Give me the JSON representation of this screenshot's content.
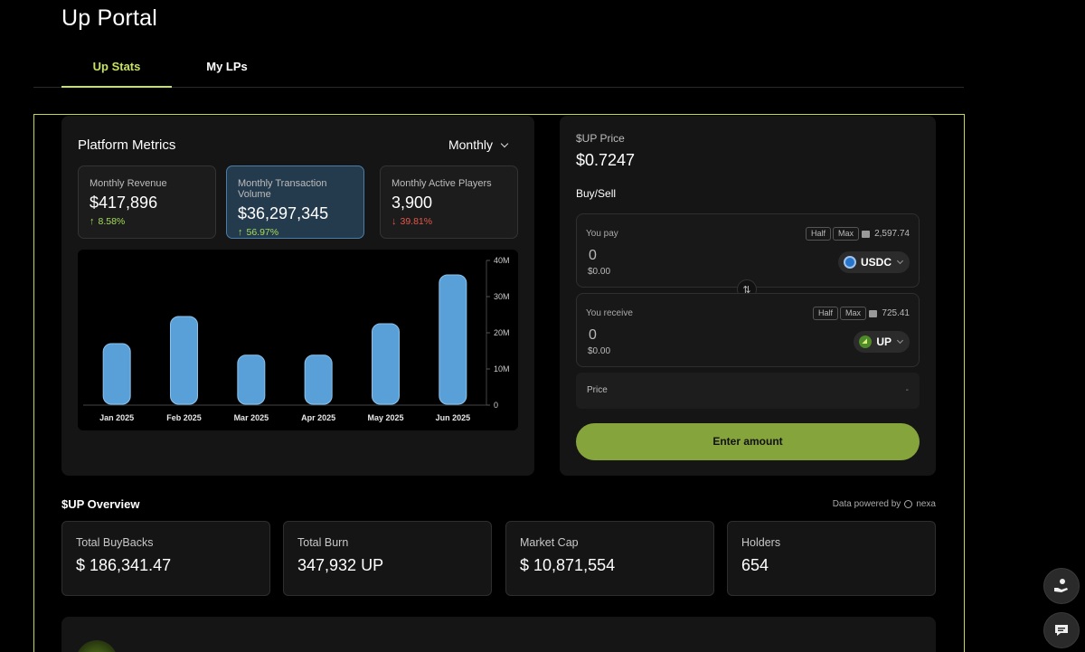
{
  "app": {
    "title": "Up Portal"
  },
  "tabs": [
    {
      "label": "Up Stats",
      "active": true
    },
    {
      "label": "My LPs",
      "active": false
    }
  ],
  "metrics": {
    "title": "Platform Metrics",
    "period": "Monthly",
    "cards": [
      {
        "label": "Monthly Revenue",
        "value": "$417,896",
        "delta": "8.58%",
        "direction": "up"
      },
      {
        "label": "Monthly Transaction Volume",
        "value": "$36,297,345",
        "delta": "56.97%",
        "direction": "up"
      },
      {
        "label": "Monthly Active Players",
        "value": "3,900",
        "delta": "39.81%",
        "direction": "down"
      }
    ]
  },
  "chart_data": {
    "type": "bar",
    "categories": [
      "Jan 2025",
      "Feb 2025",
      "Mar 2025",
      "Apr 2025",
      "May 2025",
      "Jun 2025"
    ],
    "values": [
      17000000,
      24500000,
      13800000,
      13800000,
      22500000,
      36000000
    ],
    "yticks": [
      "0",
      "10M",
      "20M",
      "30M",
      "40M"
    ],
    "ylim": [
      0,
      40000000
    ],
    "bar_color": "#5aa0d8",
    "title": "",
    "xlabel": "",
    "ylabel": ""
  },
  "price": {
    "label": "$UP Price",
    "value": "$0.7247",
    "buysell": "Buy/Sell",
    "pay": {
      "label": "You pay",
      "half": "Half",
      "max": "Max",
      "balance": "2,597.74",
      "amount": "0",
      "usd": "$0.00",
      "token": "USDC"
    },
    "receive": {
      "label": "You receive",
      "half": "Half",
      "max": "Max",
      "balance": "725.41",
      "amount": "0",
      "usd": "$0.00",
      "token": "UP"
    },
    "price_row": {
      "label": "Price",
      "value": "-"
    },
    "enter": "Enter amount"
  },
  "overview": {
    "title": "$UP Overview",
    "powered_by": "Data powered by",
    "provider": "nexa",
    "cards": [
      {
        "label": "Total BuyBacks",
        "value": "$ 186,341.47"
      },
      {
        "label": "Total Burn",
        "value": "347,932 UP"
      },
      {
        "label": "Market Cap",
        "value": "$ 10,871,554"
      },
      {
        "label": "Holders",
        "value": "654"
      }
    ]
  },
  "colors": {
    "accent": "#c7e25b",
    "positive": "#a6dd5a",
    "negative": "#e5574a",
    "button": "#86a43c"
  }
}
